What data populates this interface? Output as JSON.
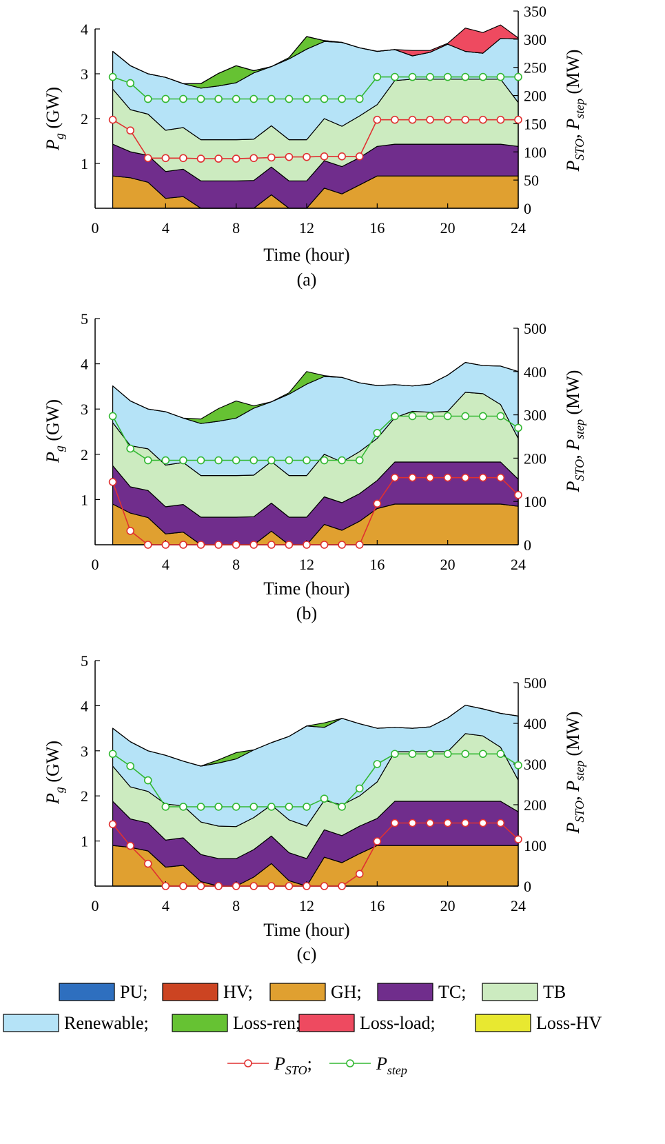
{
  "chart_data": [
    {
      "type": "area",
      "caption": "(a)",
      "xlabel": "Time (hour)",
      "ylabel": "P_g (GW)",
      "y2label": "P_STO, P_step (MW)",
      "xlim": [
        0,
        24
      ],
      "xticks": [
        0,
        4,
        8,
        12,
        16,
        20,
        24
      ],
      "ylim": [
        0,
        4
      ],
      "yticks": [
        1,
        2,
        3,
        4
      ],
      "y2lim": [
        0,
        350
      ],
      "y2ticks": [
        0,
        50,
        100,
        150,
        200,
        250,
        300,
        350
      ],
      "x": [
        1,
        2,
        3,
        4,
        5,
        6,
        7,
        8,
        9,
        10,
        11,
        12,
        13,
        14,
        15,
        16,
        17,
        18,
        19,
        20,
        21,
        22,
        23,
        24
      ],
      "series": [
        {
          "name": "GH",
          "values": [
            0.72,
            0.68,
            0.58,
            0.22,
            0.26,
            0.0,
            0.0,
            0.0,
            0.0,
            0.3,
            0.0,
            0.0,
            0.45,
            0.32,
            0.52,
            0.72,
            0.72,
            0.72,
            0.72,
            0.72,
            0.72,
            0.72,
            0.72,
            0.72
          ]
        },
        {
          "name": "TC",
          "values": [
            0.71,
            0.58,
            0.6,
            0.6,
            0.61,
            0.61,
            0.61,
            0.61,
            0.62,
            0.62,
            0.61,
            0.61,
            0.61,
            0.61,
            0.61,
            0.66,
            0.71,
            0.71,
            0.71,
            0.71,
            0.71,
            0.71,
            0.71,
            0.66
          ]
        },
        {
          "name": "TB",
          "values": [
            1.23,
            0.94,
            0.92,
            0.92,
            0.93,
            0.92,
            0.92,
            0.92,
            0.92,
            0.92,
            0.92,
            0.92,
            0.94,
            0.9,
            0.93,
            0.93,
            1.42,
            1.45,
            1.45,
            1.45,
            1.45,
            1.45,
            1.45,
            0.98
          ]
        },
        {
          "name": "Renewable",
          "values": [
            0.84,
            0.98,
            0.9,
            1.18,
            0.98,
            1.15,
            1.2,
            1.27,
            1.48,
            1.32,
            1.8,
            2.02,
            1.72,
            1.87,
            1.52,
            1.19,
            0.69,
            0.52,
            0.6,
            0.78,
            0.62,
            0.58,
            0.91,
            1.42
          ]
        },
        {
          "name": "Loss-ren",
          "values": [
            0,
            0,
            0,
            0,
            0,
            0.1,
            0.28,
            0.38,
            0.05,
            0,
            0.03,
            0.28,
            0.02,
            0,
            0,
            0,
            0,
            0,
            0,
            0,
            0,
            0,
            0,
            0
          ]
        },
        {
          "name": "Loss-load",
          "values": [
            0,
            0,
            0,
            0,
            0,
            0,
            0,
            0,
            0,
            0,
            0,
            0,
            0,
            0,
            0,
            0,
            0,
            0.12,
            0.04,
            0.02,
            0.52,
            0.46,
            0.3,
            0.02
          ]
        }
      ],
      "lines": [
        {
          "name": "P_STO",
          "values": [
            157,
            138,
            89,
            89,
            89,
            88,
            88,
            88,
            89,
            90,
            91,
            91,
            92,
            92,
            92,
            157,
            157,
            157,
            157,
            157,
            157,
            157,
            157,
            157
          ]
        },
        {
          "name": "P_step",
          "values": [
            233,
            222,
            194,
            194,
            194,
            194,
            194,
            194,
            194,
            194,
            194,
            194,
            194,
            194,
            194,
            233,
            233,
            233,
            233,
            233,
            233,
            233,
            233,
            233
          ]
        }
      ]
    },
    {
      "type": "area",
      "caption": "(b)",
      "xlabel": "Time (hour)",
      "ylabel": "P_g (GW)",
      "y2label": "P_STO, P_step (MW)",
      "xlim": [
        0,
        24
      ],
      "xticks": [
        0,
        4,
        8,
        12,
        16,
        20,
        24
      ],
      "ylim": [
        0,
        5
      ],
      "yticks": [
        1,
        2,
        3,
        4,
        5
      ],
      "y2lim": [
        0,
        500
      ],
      "y2ticks": [
        0,
        100,
        200,
        300,
        400,
        500
      ],
      "x": [
        1,
        2,
        3,
        4,
        5,
        6,
        7,
        8,
        9,
        10,
        11,
        12,
        13,
        14,
        15,
        16,
        17,
        18,
        19,
        20,
        21,
        22,
        23,
        24
      ],
      "series": [
        {
          "name": "GH",
          "values": [
            0.9,
            0.7,
            0.6,
            0.24,
            0.28,
            0.0,
            0.0,
            0.0,
            0.0,
            0.3,
            0.0,
            0.0,
            0.45,
            0.32,
            0.52,
            0.8,
            0.9,
            0.9,
            0.9,
            0.9,
            0.9,
            0.9,
            0.9,
            0.85
          ]
        },
        {
          "name": "TC",
          "values": [
            0.85,
            0.58,
            0.6,
            0.6,
            0.61,
            0.61,
            0.61,
            0.61,
            0.62,
            0.62,
            0.61,
            0.61,
            0.61,
            0.61,
            0.61,
            0.62,
            0.93,
            0.93,
            0.93,
            0.93,
            0.93,
            0.93,
            0.93,
            0.6
          ]
        },
        {
          "name": "TB",
          "values": [
            0.95,
            0.91,
            0.92,
            0.92,
            0.93,
            0.92,
            0.92,
            0.92,
            0.92,
            0.92,
            0.92,
            0.92,
            0.94,
            0.9,
            0.93,
            0.93,
            0.98,
            1.12,
            1.1,
            1.12,
            1.54,
            1.51,
            1.27,
            0.9
          ]
        },
        {
          "name": "Renewable",
          "values": [
            0.81,
            0.99,
            0.88,
            1.18,
            0.98,
            1.15,
            1.2,
            1.27,
            1.48,
            1.32,
            1.8,
            2.02,
            1.72,
            1.87,
            1.52,
            1.17,
            0.73,
            0.56,
            0.62,
            0.8,
            0.66,
            0.62,
            0.85,
            1.48
          ]
        },
        {
          "name": "Loss-ren",
          "values": [
            0,
            0,
            0,
            0,
            0,
            0.1,
            0.28,
            0.38,
            0.05,
            0,
            0.03,
            0.28,
            0.02,
            0,
            0,
            0,
            0,
            0,
            0,
            0,
            0,
            0,
            0,
            0
          ]
        }
      ],
      "lines": [
        {
          "name": "P_STO",
          "values": [
            145,
            32,
            0,
            0,
            0,
            0,
            0,
            0,
            0,
            0,
            0,
            0,
            0,
            0,
            0,
            95,
            155,
            155,
            155,
            155,
            155,
            155,
            155,
            115
          ]
        },
        {
          "name": "P_step",
          "values": [
            297,
            222,
            195,
            195,
            195,
            195,
            195,
            195,
            195,
            195,
            195,
            195,
            195,
            195,
            195,
            258,
            297,
            297,
            297,
            297,
            297,
            297,
            297,
            270
          ]
        }
      ]
    },
    {
      "type": "area",
      "caption": "(c)",
      "xlabel": "Time (hour)",
      "ylabel": "P_g (GW)",
      "y2label": "P_STO, P_step (MW)",
      "xlim": [
        0,
        24
      ],
      "xticks": [
        0,
        4,
        8,
        12,
        16,
        20,
        24
      ],
      "ylim": [
        0,
        5
      ],
      "yticks": [
        1,
        2,
        3,
        4,
        5
      ],
      "y2lim": [
        0,
        500
      ],
      "y2ticks": [
        0,
        100,
        200,
        300,
        400,
        500
      ],
      "x": [
        1,
        2,
        3,
        4,
        5,
        6,
        7,
        8,
        9,
        10,
        11,
        12,
        13,
        14,
        15,
        16,
        17,
        18,
        19,
        20,
        21,
        22,
        23,
        24
      ],
      "series": [
        {
          "name": "GH",
          "values": [
            0.9,
            0.86,
            0.78,
            0.42,
            0.46,
            0.1,
            0.0,
            0.0,
            0.2,
            0.5,
            0.12,
            0.0,
            0.64,
            0.52,
            0.72,
            0.9,
            0.9,
            0.9,
            0.9,
            0.9,
            0.9,
            0.9,
            0.9,
            0.9
          ]
        },
        {
          "name": "TC",
          "values": [
            0.98,
            0.63,
            0.62,
            0.6,
            0.61,
            0.6,
            0.61,
            0.61,
            0.61,
            0.61,
            0.62,
            0.61,
            0.61,
            0.6,
            0.61,
            0.6,
            0.98,
            0.98,
            0.98,
            0.98,
            0.98,
            0.98,
            0.98,
            0.75
          ]
        },
        {
          "name": "TB",
          "values": [
            0.78,
            0.71,
            0.7,
            0.8,
            0.71,
            0.72,
            0.72,
            0.71,
            0.71,
            0.69,
            0.73,
            0.72,
            0.65,
            0.68,
            0.67,
            0.81,
            1.1,
            1.1,
            1.1,
            1.1,
            1.5,
            1.45,
            1.2,
            0.7
          ]
        },
        {
          "name": "Renewable",
          "values": [
            0.84,
            1.0,
            0.9,
            1.08,
            0.99,
            1.24,
            1.4,
            1.5,
            1.5,
            1.38,
            1.85,
            2.22,
            1.62,
            1.92,
            1.6,
            1.19,
            0.54,
            0.52,
            0.55,
            0.75,
            0.63,
            0.6,
            0.75,
            1.42
          ]
        },
        {
          "name": "Loss-ren",
          "values": [
            0,
            0,
            0,
            0,
            0,
            0,
            0.07,
            0.14,
            0,
            0,
            0,
            0,
            0.1,
            0,
            0,
            0,
            0,
            0,
            0,
            0,
            0,
            0,
            0,
            0
          ]
        }
      ],
      "lines": [
        {
          "name": "P_STO",
          "values": [
            152,
            99,
            55,
            0,
            0,
            0,
            0,
            0,
            0,
            0,
            0,
            0,
            0,
            0,
            30,
            110,
            155,
            155,
            155,
            155,
            155,
            155,
            155,
            115
          ]
        },
        {
          "name": "P_step",
          "values": [
            325,
            295,
            260,
            195,
            195,
            195,
            195,
            195,
            195,
            195,
            195,
            195,
            215,
            195,
            240,
            300,
            325,
            325,
            325,
            325,
            325,
            325,
            325,
            297
          ]
        }
      ]
    }
  ],
  "legend": {
    "rows": [
      [
        {
          "key": "PU",
          "label": "PU;",
          "color": "#2E6FBF"
        },
        {
          "key": "HV",
          "label": "HV;",
          "color": "#CC4422"
        },
        {
          "key": "GH",
          "label": "GH;",
          "color": "#E0A030"
        },
        {
          "key": "TC",
          "label": "TC;",
          "color": "#702D8C"
        },
        {
          "key": "TB",
          "label": "TB",
          "color": "#CCEBC0"
        }
      ],
      [
        {
          "key": "Renewable",
          "label": "Renewable;",
          "color": "#B5E3F7"
        },
        {
          "key": "Loss-ren",
          "label": "Loss-ren;",
          "color": "#66C233"
        },
        {
          "key": "Loss-load",
          "label": "Loss-load;",
          "color": "#EE4A60"
        },
        {
          "key": "Loss-HV",
          "label": "Loss-HV",
          "color": "#E8E830"
        }
      ]
    ],
    "lines": [
      {
        "key": "P_STO",
        "label": "P",
        "sub": "STO",
        "suffix": ";",
        "color": "#E03030"
      },
      {
        "key": "P_step",
        "label": "P",
        "sub": "step",
        "suffix": "",
        "color": "#33B833"
      }
    ]
  },
  "axis_text": {
    "ylabel_main": "P",
    "ylabel_sub": "g",
    "ylabel_unit": " (GW)",
    "y2label_p1": "P",
    "y2label_s1": "STO",
    "y2label_mid": ", ",
    "y2label_p2": "P",
    "y2label_s2": "step",
    "y2label_unit": " (MW)"
  }
}
